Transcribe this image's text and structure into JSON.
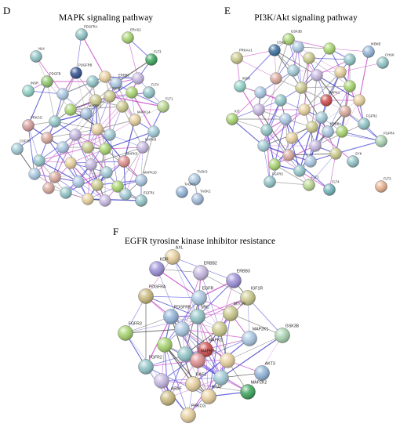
{
  "panels": [
    {
      "letter": "D",
      "title": "MAPK signaling pathway",
      "nodes": [
        {
          "label": "PDGFRA",
          "color": "#8fc3c6"
        },
        {
          "label": "ERAS2",
          "color": "#a6d36c"
        },
        {
          "label": "NLK",
          "color": "#8fc3c6"
        },
        {
          "label": "PDGFRB",
          "color": "#2f4f8f"
        },
        {
          "label": "FLT3",
          "color": "#3aa35a"
        },
        {
          "label": "PDGFB",
          "color": "#8cc56b"
        },
        {
          "label": "INSR",
          "color": "#8fd3c5"
        },
        {
          "label": "ERBB3",
          "color": "#a9c7e2"
        },
        {
          "label": "FLT4",
          "color": "#8fc3c6"
        },
        {
          "label": "FLT1",
          "color": "#b9d78f"
        },
        {
          "label": "IGF1R",
          "color": "#c9c88a"
        },
        {
          "label": "MAP2K1",
          "color": "#a4c0e0"
        },
        {
          "label": "MAPK14",
          "color": "#e7cf9b"
        },
        {
          "label": "PRKCG",
          "color": "#d79b9b"
        },
        {
          "label": "CSF1R",
          "color": "#9fc9d5"
        },
        {
          "label": "MAPK3",
          "color": "#e08e8e"
        },
        {
          "label": "MAPK8",
          "color": "#c5b7e0"
        },
        {
          "label": "MAPK10",
          "color": "#a9c7e2"
        },
        {
          "label": "EGFR1",
          "color": "#8fc3c6"
        },
        {
          "label": "TAOK3",
          "color": "#a9c7e2"
        },
        {
          "label": "TAOK1",
          "color": "#8fb3d8"
        },
        {
          "label": "TAOK2",
          "color": "#9fb8d8"
        }
      ]
    },
    {
      "letter": "E",
      "title": "PI3K/Akt signaling pathway",
      "nodes": [
        {
          "label": "GSK3B",
          "color": "#a6d36c"
        },
        {
          "label": "CSK2",
          "color": "#3a6e9e"
        },
        {
          "label": "IKBKB",
          "color": "#8fb3d8"
        },
        {
          "label": "PRKAA1",
          "color": "#c9c88a"
        },
        {
          "label": "CHUK",
          "color": "#8fc3c6"
        },
        {
          "label": "MAPK1",
          "color": "#d04a4a"
        },
        {
          "label": "INSR",
          "color": "#8fd3c5"
        },
        {
          "label": "ERBB4",
          "color": "#a9c7e2"
        },
        {
          "label": "KIT",
          "color": "#a6d36c"
        },
        {
          "label": "FGFR2",
          "color": "#8fc3c6"
        },
        {
          "label": "FGFR4",
          "color": "#a9d3b0"
        },
        {
          "label": "SYK",
          "color": "#8fc3c6"
        },
        {
          "label": "FLT4",
          "color": "#6fb2b8"
        },
        {
          "label": "FLT3",
          "color": "#e8b08c"
        },
        {
          "label": "FGFR3",
          "color": "#8fc3c6"
        },
        {
          "label": "FLT1",
          "color": "#b9d78f"
        }
      ]
    },
    {
      "letter": "F",
      "title": "EGFR tyrosine kinase inhibitor resistance",
      "nodes": [
        {
          "label": "AXL",
          "color": "#e7cf9b"
        },
        {
          "label": "KDR",
          "color": "#9b8fd8"
        },
        {
          "label": "ERBB2",
          "color": "#c5b7e0"
        },
        {
          "label": "ERBB3",
          "color": "#9b8fd8"
        },
        {
          "label": "PDGFRA",
          "color": "#c9b87a"
        },
        {
          "label": "EGFR",
          "color": "#a9c7e2"
        },
        {
          "label": "IGF1R",
          "color": "#c9c88a"
        },
        {
          "label": "MTOR",
          "color": "#c9c88a"
        },
        {
          "label": "PDGFRB",
          "color": "#8fb3d8"
        },
        {
          "label": "SRC",
          "color": "#8fc3c6"
        },
        {
          "label": "FGFR3",
          "color": "#a6d36c"
        },
        {
          "label": "MAPK1",
          "color": "#d04a4a"
        },
        {
          "label": "MAP2K1",
          "color": "#a9c7e2"
        },
        {
          "label": "GSK3B",
          "color": "#a9d3b0"
        },
        {
          "label": "MAPK3",
          "color": "#e08e8e"
        },
        {
          "label": "AKT3",
          "color": "#8fb3d8"
        },
        {
          "label": "FGFR2",
          "color": "#8fc3c6"
        },
        {
          "label": "MAP2K2",
          "color": "#3aa35a"
        },
        {
          "label": "BRAF",
          "color": "#e7cf9b"
        },
        {
          "label": "ARAF",
          "color": "#c9b87a"
        },
        {
          "label": "RAF1",
          "color": "#e7cf9b"
        },
        {
          "label": "PRKCG",
          "color": "#e7cf9b"
        }
      ]
    }
  ]
}
